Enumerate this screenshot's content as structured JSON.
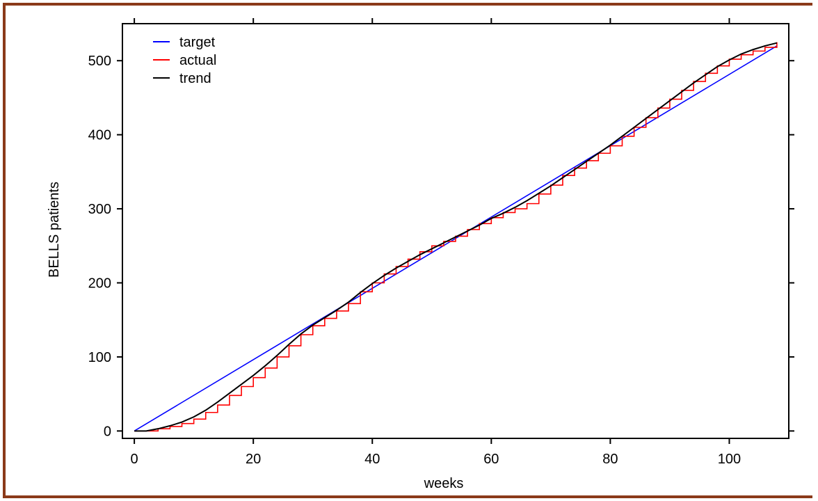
{
  "colors": {
    "frame": "#8B3A1A",
    "target": "#0000FF",
    "actual": "#FF0000",
    "trend": "#000000"
  },
  "chart_data": {
    "type": "line",
    "title": "",
    "xlabel": "weeks",
    "ylabel": "BELLS patients",
    "xlim": [
      -2,
      110
    ],
    "ylim": [
      -10,
      550
    ],
    "x_ticks": [
      0,
      20,
      40,
      60,
      80,
      100
    ],
    "y_ticks": [
      0,
      100,
      200,
      300,
      400,
      500
    ],
    "grid": false,
    "legend_position": "top-left",
    "series": [
      {
        "name": "target",
        "style": "line",
        "x": [
          0,
          108
        ],
        "y": [
          0,
          520
        ]
      },
      {
        "name": "actual",
        "style": "step",
        "x": [
          0,
          2,
          4,
          6,
          8,
          10,
          12,
          14,
          16,
          18,
          20,
          22,
          24,
          26,
          28,
          30,
          32,
          34,
          36,
          38,
          40,
          42,
          44,
          46,
          48,
          50,
          52,
          54,
          56,
          58,
          60,
          62,
          64,
          66,
          68,
          70,
          72,
          74,
          76,
          78,
          80,
          82,
          84,
          86,
          88,
          90,
          92,
          94,
          96,
          98,
          100,
          102,
          104,
          106,
          108
        ],
        "y": [
          0,
          0,
          3,
          6,
          10,
          16,
          25,
          35,
          48,
          60,
          72,
          85,
          100,
          115,
          130,
          142,
          152,
          162,
          172,
          188,
          200,
          212,
          222,
          232,
          242,
          250,
          256,
          263,
          272,
          280,
          288,
          295,
          300,
          307,
          320,
          332,
          345,
          355,
          365,
          375,
          385,
          398,
          410,
          423,
          436,
          448,
          460,
          472,
          483,
          493,
          502,
          508,
          513,
          518,
          525
        ]
      },
      {
        "name": "trend",
        "style": "line",
        "x": [
          0,
          2,
          4,
          6,
          8,
          10,
          12,
          14,
          16,
          18,
          20,
          22,
          24,
          26,
          28,
          30,
          32,
          34,
          36,
          38,
          40,
          42,
          44,
          46,
          48,
          50,
          52,
          54,
          56,
          58,
          60,
          62,
          64,
          66,
          68,
          70,
          72,
          74,
          76,
          78,
          80,
          82,
          84,
          86,
          88,
          90,
          92,
          94,
          96,
          98,
          100,
          102,
          104,
          106,
          108
        ],
        "y": [
          0,
          0,
          3,
          7,
          12,
          19,
          28,
          39,
          51,
          63,
          75,
          88,
          102,
          117,
          131,
          143,
          153,
          163,
          174,
          187,
          199,
          210,
          220,
          229,
          238,
          246,
          254,
          262,
          270,
          278,
          287,
          294,
          302,
          311,
          321,
          331,
          342,
          353,
          364,
          375,
          386,
          398,
          410,
          422,
          434,
          446,
          458,
          470,
          481,
          492,
          501,
          509,
          515,
          520,
          524
        ]
      }
    ]
  }
}
